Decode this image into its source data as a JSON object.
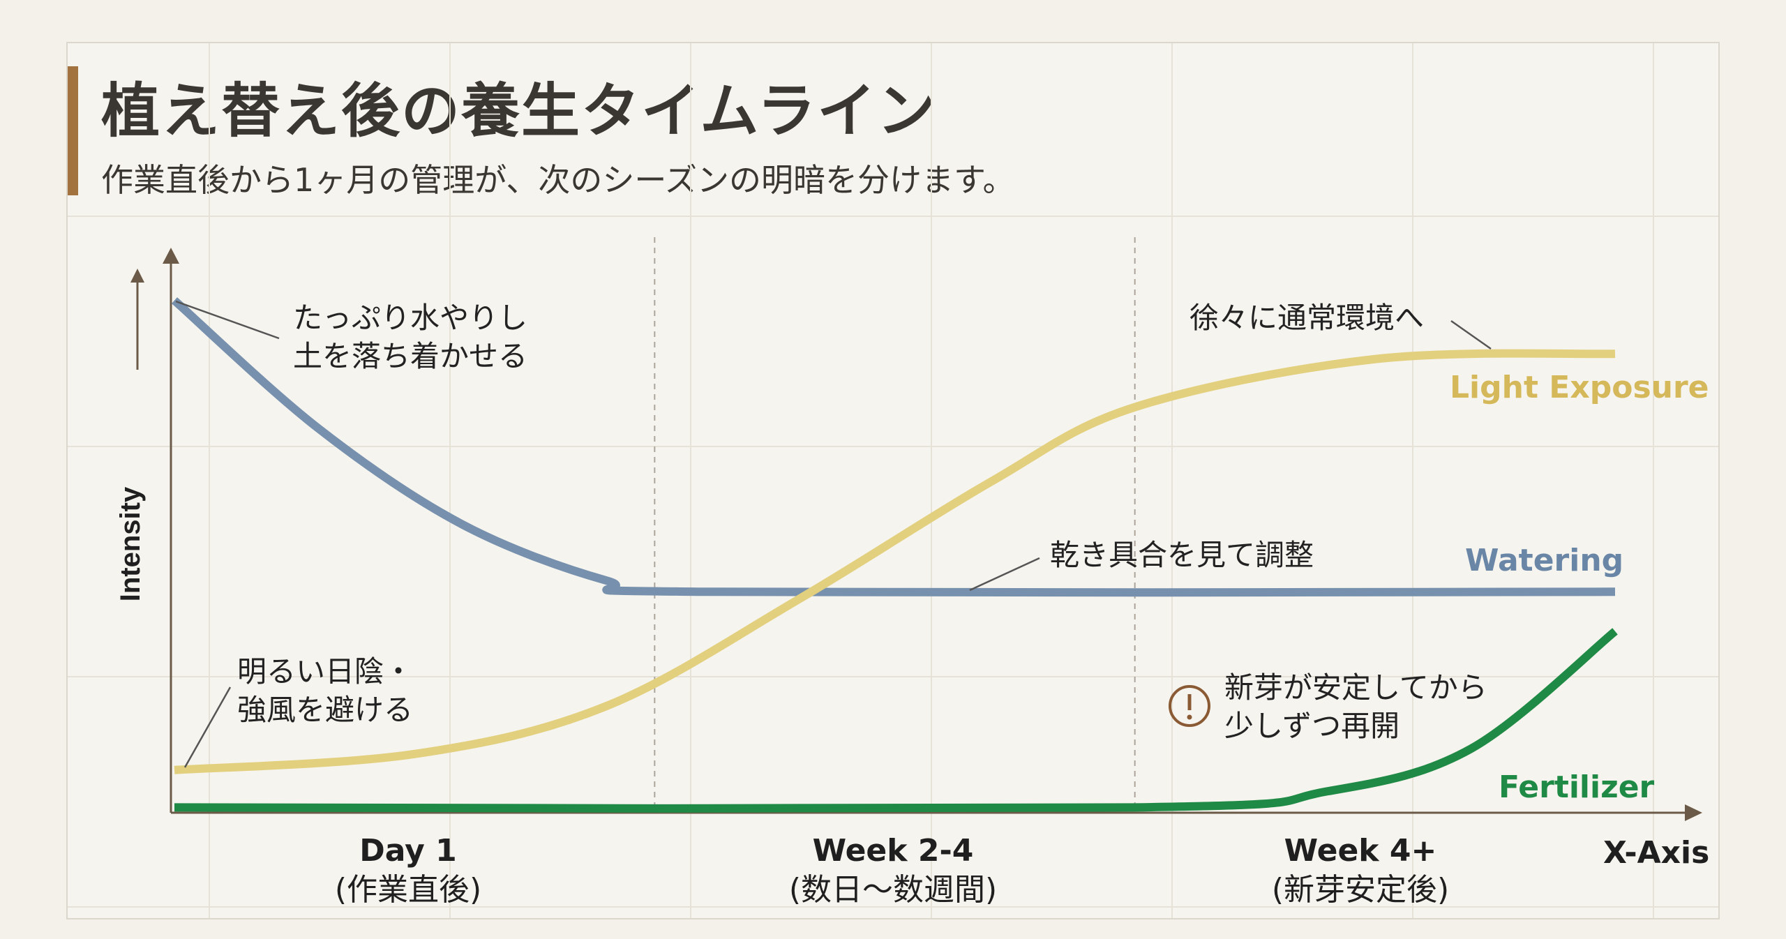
{
  "header": {
    "title": "植え替え後の養生タイムライン",
    "subtitle": "作業直後から1ヶ月の管理が、次のシーズンの明暗を分けます。"
  },
  "chart_data": {
    "type": "line",
    "title": "植え替え後の養生タイムライン",
    "subtitle": "作業直後から1ヶ月の管理が、次のシーズンの明暗を分けます。",
    "xlabel": "X-Axis",
    "ylabel": "Intensity",
    "x_ticks": [
      {
        "label": "Day 1",
        "sublabel": "(作業直後)"
      },
      {
        "label": "Week 2-4",
        "sublabel": "(数日〜数週間)"
      },
      {
        "label": "Week 4+",
        "sublabel": "(新芽安定後)"
      }
    ],
    "phase_boundaries": [
      1,
      2
    ],
    "xlim": [
      0,
      3
    ],
    "ylim": [
      0,
      1
    ],
    "grid": true,
    "series": [
      {
        "name": "Watering",
        "color": "#7690ad",
        "points": [
          [
            0,
            0.96
          ],
          [
            0.3,
            0.72
          ],
          [
            0.6,
            0.54
          ],
          [
            0.9,
            0.435
          ],
          [
            1.1,
            0.414
          ],
          [
            3,
            0.414
          ]
        ]
      },
      {
        "name": "Light Exposure",
        "color": "#e2d07f",
        "points": [
          [
            0,
            0.08
          ],
          [
            0.5,
            0.11
          ],
          [
            0.9,
            0.2
          ],
          [
            1.3,
            0.4
          ],
          [
            1.7,
            0.62
          ],
          [
            2.0,
            0.76
          ],
          [
            2.5,
            0.85
          ],
          [
            3,
            0.86
          ]
        ]
      },
      {
        "name": "Fertilizer",
        "color": "#1f8a45",
        "points": [
          [
            0,
            0.01
          ],
          [
            2,
            0.01
          ],
          [
            2.4,
            0.04
          ],
          [
            2.7,
            0.12
          ],
          [
            3,
            0.34
          ]
        ]
      }
    ],
    "annotations": [
      {
        "text": [
          "たっぷり水やりし",
          "土を落ち着かせる"
        ]
      },
      {
        "text": [
          "徐々に通常環境へ"
        ]
      },
      {
        "text": [
          "乾き具合を見て調整"
        ]
      },
      {
        "text": [
          "明るい日陰・",
          "強風を避ける"
        ]
      },
      {
        "text": [
          "新芽が安定してから",
          "少しずつ再開"
        ],
        "icon": "warning-icon"
      }
    ]
  },
  "colors": {
    "accent": "#a3733f",
    "axis": "#6b5a48",
    "warning": "#8a5a34"
  }
}
